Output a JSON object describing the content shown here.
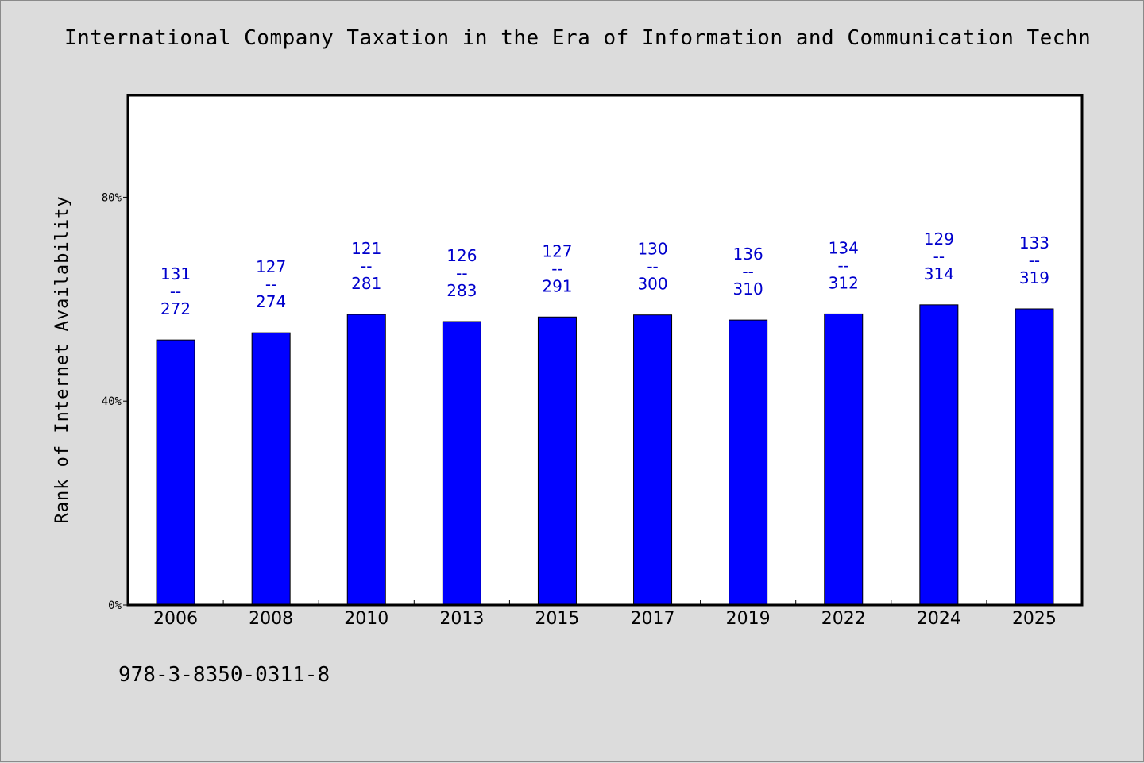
{
  "chart_data": {
    "type": "bar",
    "title": "International Company Taxation in the Era of Information and Communication Techn",
    "ylabel": "Rank of Internet Availability",
    "xlabel": "",
    "ylim": [
      0,
      100
    ],
    "yticks": [
      0,
      40,
      80
    ],
    "ytick_labels": [
      "0%",
      "40%",
      "80%"
    ],
    "categories": [
      "2006",
      "2008",
      "2010",
      "2013",
      "2015",
      "2017",
      "2019",
      "2022",
      "2024",
      "2025"
    ],
    "values": [
      52.0,
      53.4,
      57.0,
      55.6,
      56.5,
      56.9,
      55.9,
      57.1,
      58.9,
      58.1
    ],
    "data_labels": [
      {
        "top": "131",
        "sep": "--",
        "bottom": "272"
      },
      {
        "top": "127",
        "sep": "--",
        "bottom": "274"
      },
      {
        "top": "121",
        "sep": "--",
        "bottom": "281"
      },
      {
        "top": "126",
        "sep": "--",
        "bottom": "283"
      },
      {
        "top": "127",
        "sep": "--",
        "bottom": "291"
      },
      {
        "top": "130",
        "sep": "--",
        "bottom": "300"
      },
      {
        "top": "136",
        "sep": "--",
        "bottom": "310"
      },
      {
        "top": "134",
        "sep": "--",
        "bottom": "312"
      },
      {
        "top": "129",
        "sep": "--",
        "bottom": "314"
      },
      {
        "top": "133",
        "sep": "--",
        "bottom": "319"
      }
    ],
    "bar_color": "#0000ff",
    "label_color": "#0000cc",
    "grid": false,
    "legend": "none"
  },
  "footer": {
    "isbn": "978-3-8350-0311-8"
  }
}
